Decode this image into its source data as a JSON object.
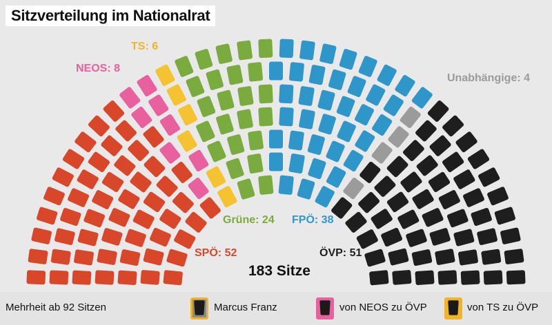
{
  "title": "Sitzverteilung im Nationalrat",
  "total_label": "183 Sitze",
  "footer": {
    "majority": "Mehrheit ab 92 Sitzen",
    "legend": [
      {
        "label": "Marcus Franz",
        "border": "#f0b429",
        "fill": "#8a8a8a",
        "inner": "#1a1a1a"
      },
      {
        "label": "von NEOS zu ÖVP",
        "border": "#e8609e",
        "fill": "#e8609e",
        "inner": "#1a1a1a"
      },
      {
        "label": "von TS zu ÖVP",
        "border": "#f0b429",
        "fill": "#f0b429",
        "inner": "#1a1a1a"
      }
    ]
  },
  "chart_data": {
    "type": "parliament",
    "title": "Sitzverteilung im Nationalrat",
    "total": 183,
    "majority": 92,
    "series": [
      {
        "name": "SPÖ",
        "label": "SPÖ: 52",
        "values": [
          52
        ],
        "color": "#d9472b"
      },
      {
        "name": "NEOS",
        "label": "NEOS: 8",
        "values": [
          8
        ],
        "color": "#e8609e"
      },
      {
        "name": "TS",
        "label": "TS: 6",
        "values": [
          6
        ],
        "color": "#f5c231"
      },
      {
        "name": "Grüne",
        "label": "Grüne: 24",
        "values": [
          24
        ],
        "color": "#7aab3e"
      },
      {
        "name": "FPÖ",
        "label": "FPÖ: 38",
        "values": [
          38
        ],
        "color": "#2f96c9"
      },
      {
        "name": "Unabhängige",
        "label": "Unabhängige: 4",
        "values": [
          4
        ],
        "color": "#9b9b9b"
      },
      {
        "name": "ÖVP",
        "label": "ÖVP: 51",
        "values": [
          51
        ],
        "color": "#1e1e1e"
      }
    ],
    "empty_seat_color": "#f4f4f6"
  }
}
